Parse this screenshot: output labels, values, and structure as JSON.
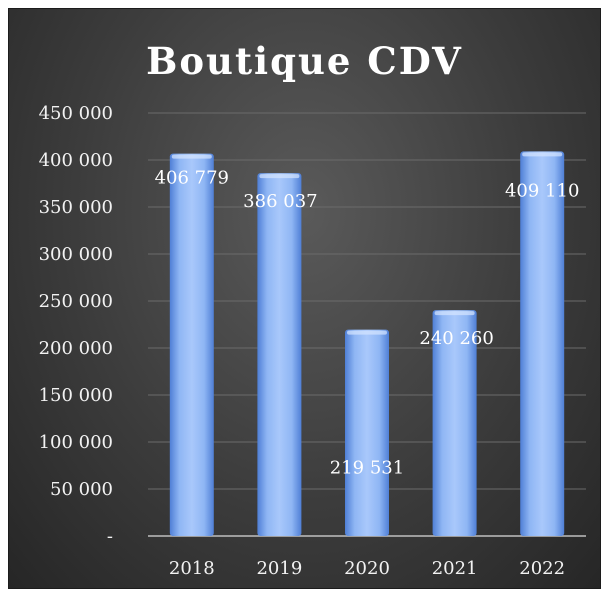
{
  "chart_data": {
    "type": "bar",
    "title": "Boutique CDV",
    "xlabel": "",
    "ylabel": "",
    "categories": [
      "2018",
      "2019",
      "2020",
      "2021",
      "2022"
    ],
    "values": [
      406779,
      386037,
      219531,
      240260,
      409110
    ],
    "data_labels": [
      "406 779",
      "386 037",
      "219 531",
      "240 260",
      "409 110"
    ],
    "ylim": [
      0,
      450000
    ],
    "y_ticks": [
      0,
      50000,
      100000,
      150000,
      200000,
      250000,
      300000,
      350000,
      400000,
      450000
    ],
    "y_tick_labels": [
      "-",
      "50 000",
      "100 000",
      "150 000",
      "200 000",
      "250 000",
      "300 000",
      "350 000",
      "400 000",
      "450 000"
    ],
    "grid": true,
    "legend": "none",
    "colors": {
      "bar": "#8db3f0",
      "background": "#404040",
      "text": "#ffffff"
    }
  }
}
